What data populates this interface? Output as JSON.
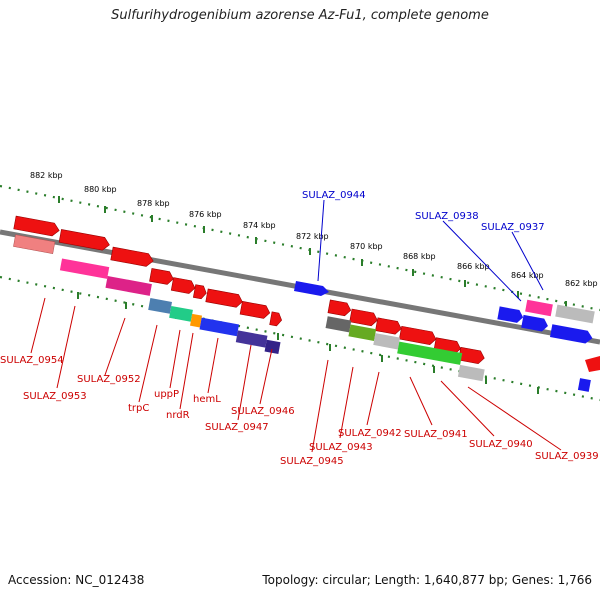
{
  "title": "Sulfurihydrogenibium azorense Az-Fu1, complete genome",
  "footer": {
    "accession": "Accession: NC_012438",
    "topology": "Topology: circular; Length: 1,640,877 bp; Genes: 1,766"
  },
  "colors": {
    "red_gene": "#ee1111",
    "blue_gene": "#1a1aee",
    "label_red": "#cc0000",
    "label_blue": "#0000cc",
    "ruler_green": "#2a7d2a"
  },
  "ruler_ticks": [
    "882 kbp",
    "880 kbp",
    "878 kbp",
    "876 kbp",
    "874 kbp",
    "872 kbp",
    "870 kbp",
    "868 kbp",
    "866 kbp",
    "864 kbp",
    "862 kbp"
  ],
  "labels_top": [
    "SULAZ_0944",
    "SULAZ_0938",
    "SULAZ_0937"
  ],
  "labels_bottom": [
    "SULAZ_0954",
    "SULAZ_0953",
    "SULAZ_0952",
    "trpC",
    "uppP",
    "nrdR",
    "hemL",
    "SULAZ_0946",
    "SULAZ_0947",
    "SULAZ_0945",
    "SULAZ_0943",
    "SULAZ_0942",
    "SULAZ_0941",
    "SULAZ_0940",
    "SULAZ_0939"
  ]
}
